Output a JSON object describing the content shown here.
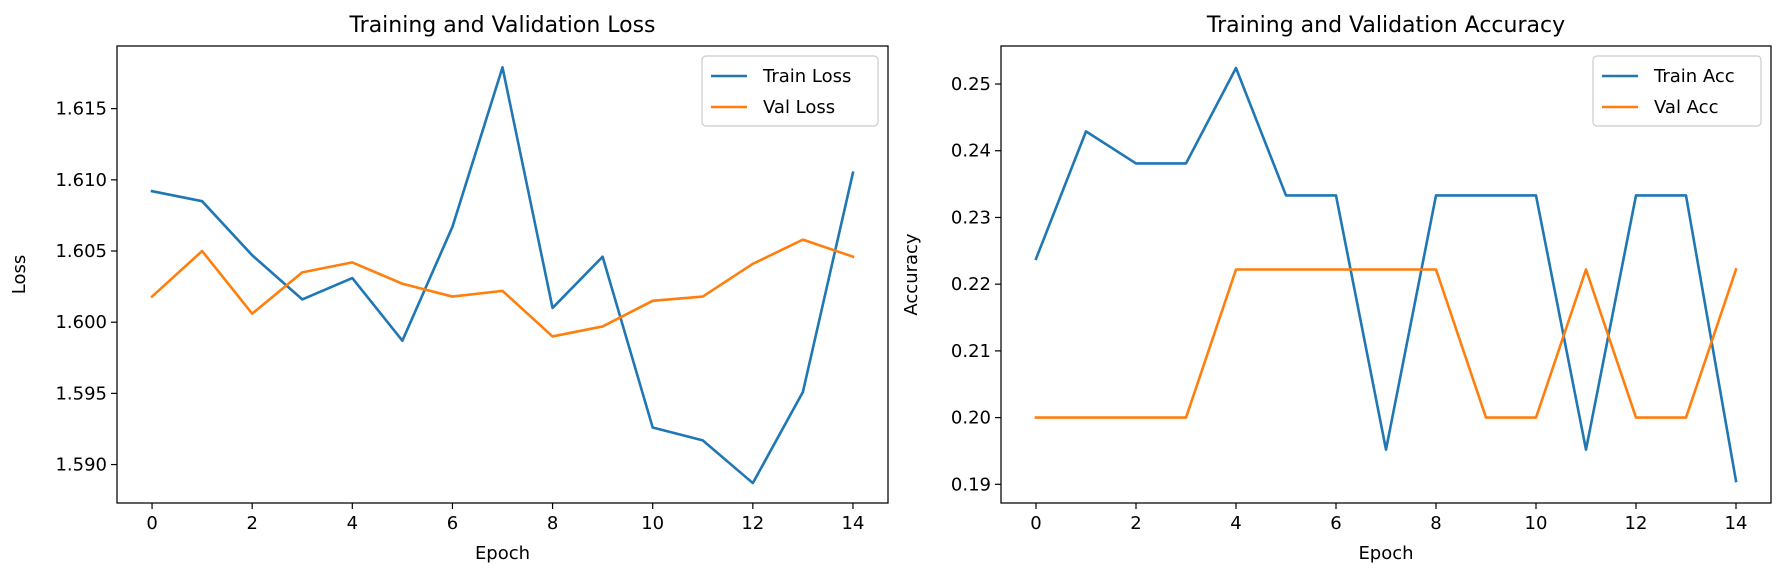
{
  "chart_data": [
    {
      "type": "line",
      "title": "Training and Validation Loss",
      "xlabel": "Epoch",
      "ylabel": "Loss",
      "x": [
        0,
        1,
        2,
        3,
        4,
        5,
        6,
        7,
        8,
        9,
        10,
        11,
        12,
        13,
        14
      ],
      "xlim": [
        -0.7,
        14.7
      ],
      "ylim": [
        1.5873,
        1.6194
      ],
      "xticks": [
        0,
        2,
        4,
        6,
        8,
        10,
        12,
        14
      ],
      "xtick_labels": [
        "0",
        "2",
        "4",
        "6",
        "8",
        "10",
        "12",
        "14"
      ],
      "yticks": [
        1.59,
        1.595,
        1.6,
        1.605,
        1.61,
        1.615
      ],
      "ytick_labels": [
        "1.590",
        "1.595",
        "1.600",
        "1.605",
        "1.610",
        "1.615"
      ],
      "legend_position": "top-right",
      "series": [
        {
          "name": "Train Loss",
          "color": "#1f77b4",
          "values": [
            1.6092,
            1.6085,
            1.6047,
            1.6016,
            1.6031,
            1.5987,
            1.6067,
            1.6179,
            1.601,
            1.6046,
            1.5926,
            1.5917,
            1.5887,
            1.5951,
            1.6105
          ]
        },
        {
          "name": "Val Loss",
          "color": "#ff7f0e",
          "values": [
            1.6018,
            1.605,
            1.6006,
            1.6035,
            1.6042,
            1.6027,
            1.6018,
            1.6022,
            1.599,
            1.5997,
            1.6015,
            1.6018,
            1.6041,
            1.6058,
            1.6046
          ]
        }
      ]
    },
    {
      "type": "line",
      "title": "Training and Validation Accuracy",
      "xlabel": "Epoch",
      "ylabel": "Accuracy",
      "x": [
        0,
        1,
        2,
        3,
        4,
        5,
        6,
        7,
        8,
        9,
        10,
        11,
        12,
        13,
        14
      ],
      "xlim": [
        -0.7,
        14.7
      ],
      "ylim": [
        0.1872,
        0.2557
      ],
      "xticks": [
        0,
        2,
        4,
        6,
        8,
        10,
        12,
        14
      ],
      "xtick_labels": [
        "0",
        "2",
        "4",
        "6",
        "8",
        "10",
        "12",
        "14"
      ],
      "yticks": [
        0.19,
        0.2,
        0.21,
        0.22,
        0.23,
        0.24,
        0.25
      ],
      "ytick_labels": [
        "0.19",
        "0.20",
        "0.21",
        "0.22",
        "0.23",
        "0.24",
        "0.25"
      ],
      "legend_position": "top-right",
      "series": [
        {
          "name": "Train Acc",
          "color": "#1f77b4",
          "values": [
            0.2238,
            0.2429,
            0.2381,
            0.2381,
            0.2524,
            0.2333,
            0.2333,
            0.1952,
            0.2333,
            0.2333,
            0.2333,
            0.1952,
            0.2333,
            0.2333,
            0.1905
          ]
        },
        {
          "name": "Val Acc",
          "color": "#ff7f0e",
          "values": [
            0.2,
            0.2,
            0.2,
            0.2,
            0.2222,
            0.2222,
            0.2222,
            0.2222,
            0.2222,
            0.2,
            0.2,
            0.2222,
            0.2,
            0.2,
            0.2222
          ]
        }
      ]
    }
  ]
}
